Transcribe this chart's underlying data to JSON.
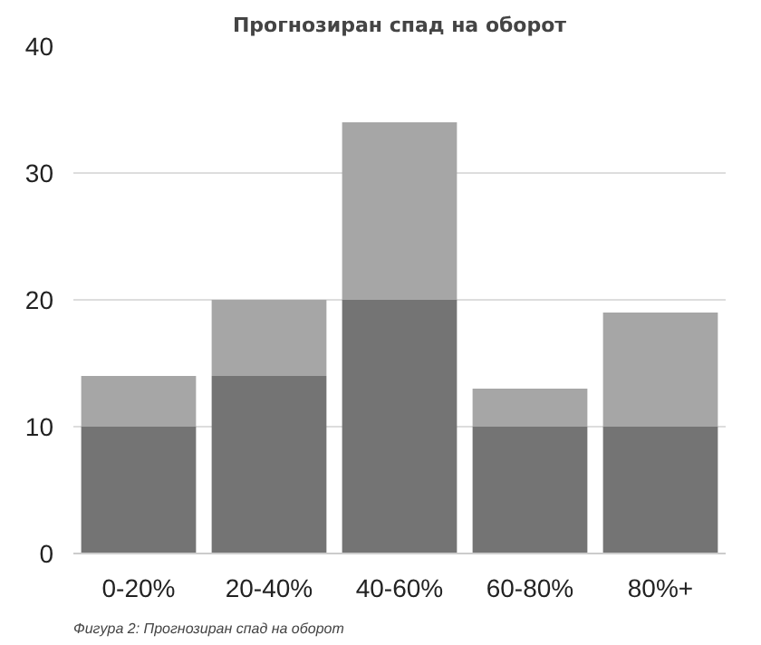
{
  "chart_data": {
    "type": "bar",
    "title": "Прогнозиран спад на оборот",
    "categories": [
      "0-20%",
      "20-40%",
      "40-60%",
      "60-80%",
      "80%+"
    ],
    "stacked": true,
    "series": [
      {
        "color": "#747474",
        "values": [
          10,
          14,
          20,
          10,
          10
        ]
      },
      {
        "color": "#a6a6a6",
        "values": [
          4,
          6,
          14,
          3,
          9
        ]
      }
    ],
    "ylim": [
      0,
      40
    ],
    "yticks": [
      0,
      10,
      20,
      30,
      40
    ],
    "grid": "y",
    "annotations": [
      "Фигура 2: Прогнозиран спад на оборот"
    ]
  }
}
